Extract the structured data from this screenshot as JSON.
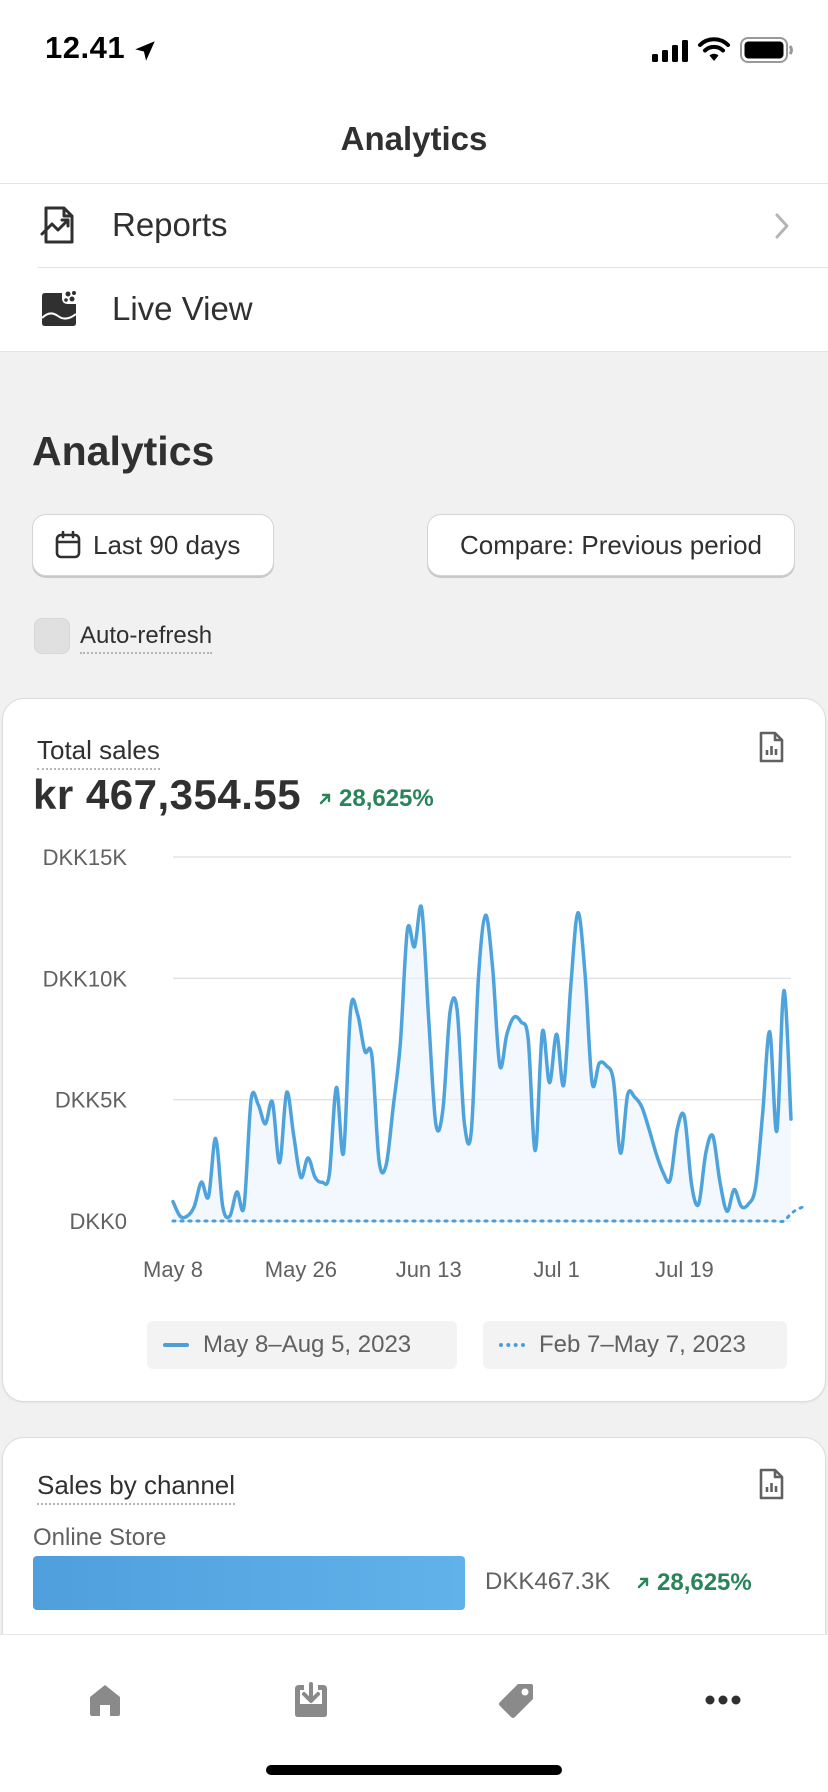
{
  "status_bar": {
    "time": "12.41"
  },
  "header": {
    "title": "Analytics"
  },
  "menu": {
    "items": [
      {
        "label": "Reports",
        "icon": "reports-icon"
      },
      {
        "label": "Live View",
        "icon": "live-view-icon"
      }
    ]
  },
  "page": {
    "title": "Analytics",
    "date_range_label": "Last 90 days",
    "compare_label": "Compare: Previous period",
    "auto_refresh_label": "Auto-refresh",
    "auto_refresh_checked": false
  },
  "total_sales": {
    "label": "Total sales",
    "value": "kr 467,354.55",
    "delta": "28,625%",
    "delta_direction": "up"
  },
  "chart_data": {
    "type": "line",
    "y_ticks": [
      "DKK15K",
      "DKK10K",
      "DKK5K",
      "DKK0"
    ],
    "ylim": [
      0,
      15000
    ],
    "x_ticks": [
      "May 8",
      "May 26",
      "Jun 13",
      "Jul 1",
      "Jul 19"
    ],
    "series": [
      {
        "name": "May 8–Aug 5, 2023",
        "style": "solid",
        "color": "#4a9fd8",
        "values": [
          800,
          200,
          200,
          600,
          1600,
          1000,
          3400,
          600,
          200,
          1200,
          600,
          5000,
          4800,
          4000,
          4900,
          2400,
          5300,
          3500,
          1800,
          2600,
          1800,
          1600,
          1900,
          5500,
          2800,
          8700,
          8500,
          7000,
          6800,
          2500,
          2300,
          4700,
          7300,
          12000,
          11300,
          12900,
          8300,
          4000,
          4600,
          8600,
          8700,
          4100,
          3700,
          10000,
          12600,
          10400,
          6400,
          7700,
          8400,
          8200,
          7500,
          2900,
          7800,
          5700,
          7700,
          5600,
          9700,
          12700,
          10200,
          5700,
          6500,
          6400,
          5800,
          2800,
          5200,
          5100,
          4700,
          3800,
          2800,
          2000,
          1700,
          3800,
          4300,
          1500,
          700,
          2800,
          3500,
          1600,
          400,
          1300,
          600,
          700,
          1400,
          4400,
          7800,
          3700,
          9500,
          4200
        ]
      },
      {
        "name": "Feb 7–May 7, 2023",
        "style": "dotted",
        "color": "#4a9fd8",
        "values": [
          0,
          0,
          0,
          0,
          0,
          0,
          0,
          0,
          0,
          0,
          0,
          0,
          0,
          0,
          0,
          0,
          0,
          0,
          0,
          0,
          0,
          0,
          0,
          0,
          0,
          0,
          0,
          0,
          0,
          0,
          0,
          0,
          0,
          0,
          0,
          0,
          0,
          0,
          0,
          0,
          0,
          0,
          0,
          0,
          0,
          0,
          0,
          0,
          0,
          0,
          0,
          0,
          0,
          0,
          0,
          0,
          0,
          0,
          0,
          0,
          0,
          0,
          0,
          0,
          0,
          0,
          0,
          0,
          0,
          0,
          0,
          0,
          0,
          0,
          0,
          0,
          0,
          0,
          0,
          0,
          0,
          0,
          0,
          0,
          0,
          0,
          0,
          300,
          500,
          600
        ]
      }
    ]
  },
  "sales_by_channel": {
    "label": "Sales by channel",
    "channel": "Online Store",
    "value": "DKK467.3K",
    "share": 1.0,
    "delta": "28,625%",
    "bar_color": "#55a7e3"
  },
  "colors": {
    "accent": "#4a9fd8",
    "positive": "#29845a",
    "background": "#f1f1f1"
  },
  "tabs": [
    {
      "icon": "home-icon"
    },
    {
      "icon": "orders-icon"
    },
    {
      "icon": "products-tag-icon"
    },
    {
      "icon": "more-icon"
    }
  ]
}
